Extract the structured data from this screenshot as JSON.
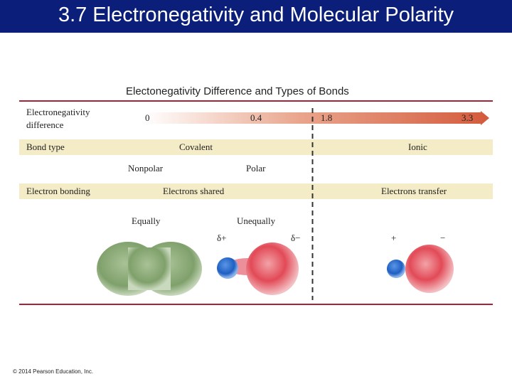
{
  "slide": {
    "title": "3.7 Electronegativity and Molecular Polarity",
    "copyright": "© 2014 Pearson Education, Inc.",
    "colors": {
      "title_bar": "#0b1f7a",
      "band": "#f3ecc6",
      "rule": "#a8233a",
      "arrow": "#d45a3c"
    }
  },
  "figure": {
    "title": "Electonegativity Difference and Types of Bonds",
    "rows": {
      "en_difference_label_1": "Electronegativity",
      "en_difference_label_2": "difference",
      "bond_type_label": "Bond type",
      "electron_bonding_label": "Electron bonding"
    },
    "scale": {
      "v0": "0",
      "v1": "0.4",
      "v2": "1.8",
      "v3": "3.3"
    },
    "bond_types": {
      "covalent": "Covalent",
      "ionic": "Ionic",
      "nonpolar": "Nonpolar",
      "polar": "Polar"
    },
    "bonding": {
      "shared": "Electrons shared",
      "transfer": "Electrons transfer",
      "equally": "Equally",
      "unequally": "Unequally"
    },
    "charges": {
      "delta_plus": "δ+",
      "delta_minus": "δ−",
      "plus": "+",
      "minus": "−"
    }
  }
}
